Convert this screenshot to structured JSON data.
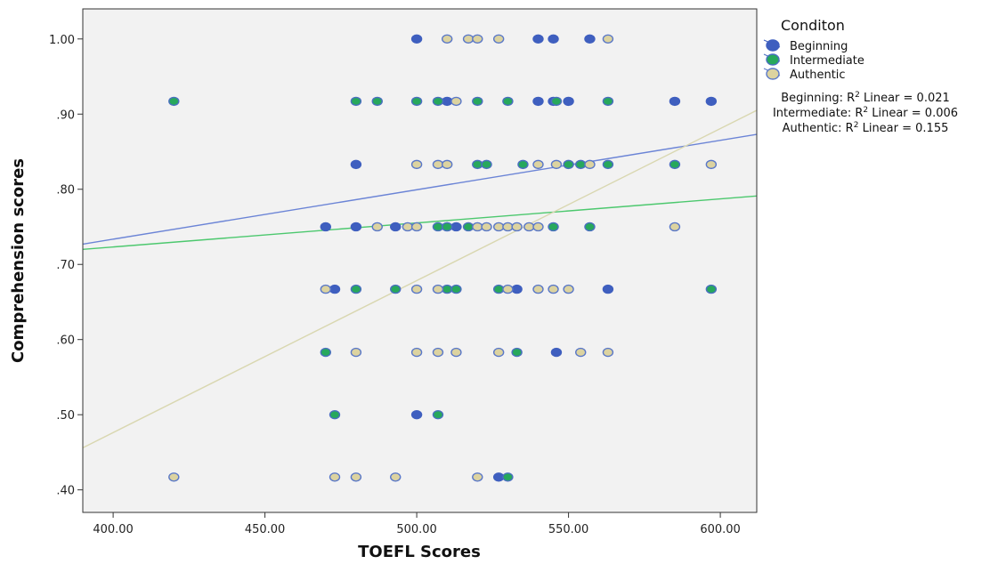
{
  "chart_data": {
    "type": "scatter",
    "xlabel": "TOEFL Scores",
    "ylabel": "Comprehension scores",
    "xlim": [
      390,
      612
    ],
    "ylim": [
      0.37,
      1.04
    ],
    "x_ticks": [
      400,
      450,
      500,
      550,
      600
    ],
    "x_tick_labels": [
      "400.00",
      "450.00",
      "500.00",
      "550.00",
      "600.00"
    ],
    "y_ticks": [
      0.4,
      0.5,
      0.6,
      0.7,
      0.8,
      0.9,
      1.0
    ],
    "y_tick_labels": [
      ".40",
      ".50",
      ".60",
      ".70",
      ".80",
      ".90",
      "1.00"
    ],
    "grid": false,
    "background": "#f2f2f2",
    "legend": {
      "title": "Conditon",
      "placement": "right",
      "entries": [
        "Beginning",
        "Intermediate",
        "Authentic"
      ]
    },
    "annotations": [
      {
        "series": "Beginning",
        "text": "Beginning: R",
        "tail": " Linear = 0.021"
      },
      {
        "series": "Intermediate",
        "text": "Intermediate: R",
        "tail": " Linear = 0.006"
      },
      {
        "series": "Authentic",
        "text": "Authentic: R",
        "tail": " Linear = 0.155"
      }
    ],
    "series": [
      {
        "name": "Beginning",
        "color": "#3f5fbf",
        "outline": "#3f5fbf",
        "fit": [
          [
            390,
            0.727
          ],
          [
            612,
            0.873
          ]
        ],
        "fit_color": "#6b84d6",
        "points": [
          [
            500,
            1.0
          ],
          [
            540,
            1.0
          ],
          [
            545,
            1.0
          ],
          [
            557,
            1.0
          ],
          [
            510,
            0.917
          ],
          [
            540,
            0.917
          ],
          [
            545,
            0.917
          ],
          [
            550,
            0.917
          ],
          [
            585,
            0.917
          ],
          [
            597,
            0.917
          ],
          [
            480,
            0.833
          ],
          [
            470,
            0.75
          ],
          [
            480,
            0.75
          ],
          [
            493,
            0.75
          ],
          [
            510,
            0.75
          ],
          [
            513,
            0.75
          ],
          [
            473,
            0.667
          ],
          [
            533,
            0.667
          ],
          [
            563,
            0.667
          ],
          [
            546,
            0.583
          ],
          [
            500,
            0.5
          ],
          [
            527,
            0.417
          ]
        ]
      },
      {
        "name": "Intermediate",
        "color": "#27a85c",
        "outline": "#4a6fc0",
        "fit": [
          [
            390,
            0.72
          ],
          [
            612,
            0.791
          ]
        ],
        "fit_color": "#4cc86e",
        "points": [
          [
            420,
            0.917
          ],
          [
            480,
            0.917
          ],
          [
            487,
            0.917
          ],
          [
            500,
            0.917
          ],
          [
            507,
            0.917
          ],
          [
            520,
            0.917
          ],
          [
            530,
            0.917
          ],
          [
            546,
            0.917
          ],
          [
            563,
            0.917
          ],
          [
            520,
            0.833
          ],
          [
            523,
            0.833
          ],
          [
            535,
            0.833
          ],
          [
            550,
            0.833
          ],
          [
            554,
            0.833
          ],
          [
            563,
            0.833
          ],
          [
            585,
            0.833
          ],
          [
            507,
            0.75
          ],
          [
            510,
            0.75
          ],
          [
            517,
            0.75
          ],
          [
            545,
            0.75
          ],
          [
            557,
            0.75
          ],
          [
            480,
            0.667
          ],
          [
            493,
            0.667
          ],
          [
            510,
            0.667
          ],
          [
            513,
            0.667
          ],
          [
            527,
            0.667
          ],
          [
            597,
            0.667
          ],
          [
            470,
            0.583
          ],
          [
            533,
            0.583
          ],
          [
            473,
            0.5
          ],
          [
            507,
            0.5
          ],
          [
            530,
            0.417
          ]
        ]
      },
      {
        "name": "Authentic",
        "color": "#dcd3a0",
        "outline": "#5a78c8",
        "fit": [
          [
            390,
            0.456
          ],
          [
            612,
            0.905
          ]
        ],
        "fit_color": "#d9d7b0",
        "points": [
          [
            510,
            1.0
          ],
          [
            517,
            1.0
          ],
          [
            520,
            1.0
          ],
          [
            527,
            1.0
          ],
          [
            563,
            1.0
          ],
          [
            513,
            0.917
          ],
          [
            500,
            0.833
          ],
          [
            507,
            0.833
          ],
          [
            510,
            0.833
          ],
          [
            540,
            0.833
          ],
          [
            546,
            0.833
          ],
          [
            557,
            0.833
          ],
          [
            597,
            0.833
          ],
          [
            487,
            0.75
          ],
          [
            497,
            0.75
          ],
          [
            500,
            0.75
          ],
          [
            520,
            0.75
          ],
          [
            523,
            0.75
          ],
          [
            527,
            0.75
          ],
          [
            530,
            0.75
          ],
          [
            533,
            0.75
          ],
          [
            537,
            0.75
          ],
          [
            540,
            0.75
          ],
          [
            585,
            0.75
          ],
          [
            470,
            0.667
          ],
          [
            500,
            0.667
          ],
          [
            507,
            0.667
          ],
          [
            530,
            0.667
          ],
          [
            540,
            0.667
          ],
          [
            545,
            0.667
          ],
          [
            550,
            0.667
          ],
          [
            480,
            0.583
          ],
          [
            500,
            0.583
          ],
          [
            507,
            0.583
          ],
          [
            513,
            0.583
          ],
          [
            527,
            0.583
          ],
          [
            554,
            0.583
          ],
          [
            563,
            0.583
          ],
          [
            420,
            0.417
          ],
          [
            473,
            0.417
          ],
          [
            480,
            0.417
          ],
          [
            493,
            0.417
          ],
          [
            520,
            0.417
          ]
        ]
      }
    ]
  }
}
